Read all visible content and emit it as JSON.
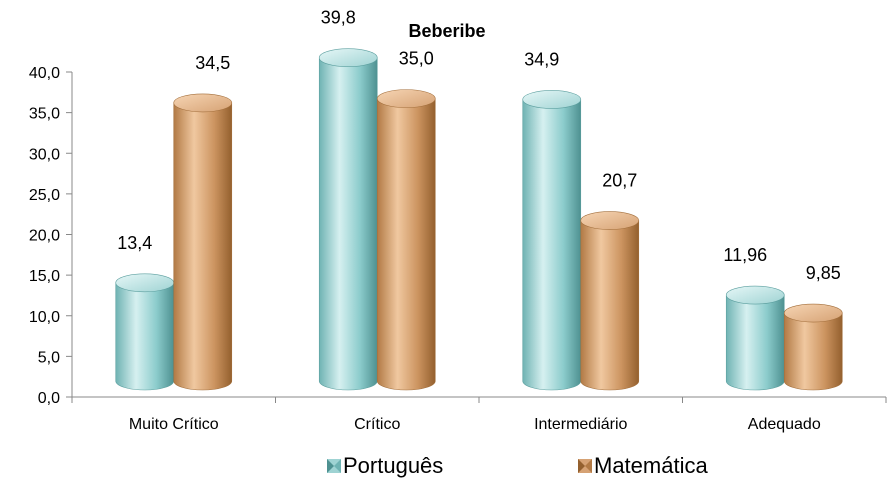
{
  "chart_data": {
    "type": "bar",
    "title": "Beberibe",
    "categories": [
      "Muito Crítico",
      "Crítico",
      "Intermediário",
      "Adequado"
    ],
    "series": [
      {
        "name": "Português",
        "color": "#7fc3c3",
        "values": [
          13.4,
          39.8,
          34.9,
          11.96
        ],
        "labels": [
          "13,4",
          "39,8",
          "34,9",
          "11,96"
        ]
      },
      {
        "name": "Matemática",
        "color": "#c99563",
        "values": [
          34.5,
          35.0,
          20.7,
          9.85
        ],
        "labels": [
          "34,5",
          "35,0",
          "20,7",
          "9,85"
        ]
      }
    ],
    "ylim": [
      0,
      40
    ],
    "yticks": [
      "0,0",
      "5,0",
      "10,0",
      "15,0",
      "20,0",
      "25,0",
      "30,0",
      "35,0",
      "40,0"
    ],
    "ytick_values": [
      0,
      5,
      10,
      15,
      20,
      25,
      30,
      35,
      40
    ],
    "legend_position": "bottom",
    "grid": false
  }
}
